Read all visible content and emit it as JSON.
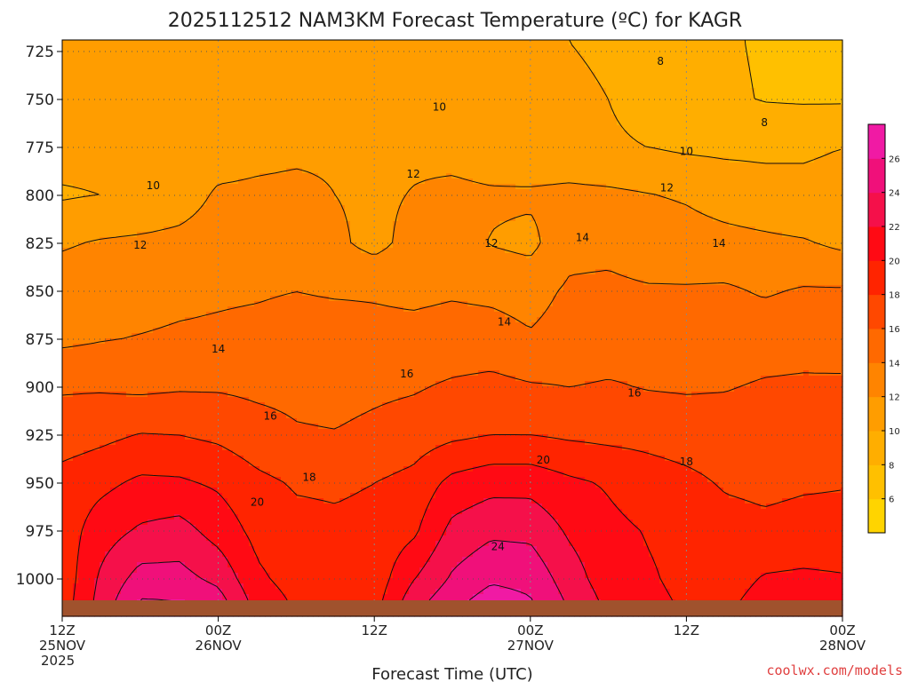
{
  "chart_data": {
    "type": "heatmap",
    "title": "2025112512 NAM3KM Forecast Temperature (ºC) for KAGR",
    "xlabel": "Forecast Time (UTC)",
    "ylabel": "",
    "y_axis": "pressure (hPa), inverted",
    "ylim": [
      1015,
      718
    ],
    "yticks": [
      "725",
      "750",
      "775",
      "800",
      "825",
      "850",
      "875",
      "900",
      "925",
      "950",
      "975",
      "1000"
    ],
    "xlim_hours": [
      0,
      60
    ],
    "xticks": [
      {
        "hour": 0,
        "lines": [
          "12Z",
          "25NOV",
          "2025"
        ]
      },
      {
        "hour": 12,
        "lines": [
          "00Z",
          "26NOV"
        ]
      },
      {
        "hour": 24,
        "lines": [
          "12Z",
          ""
        ]
      },
      {
        "hour": 36,
        "lines": [
          "00Z",
          "27NOV"
        ]
      },
      {
        "hour": 48,
        "lines": [
          "12Z",
          ""
        ]
      },
      {
        "hour": 60,
        "lines": [
          "00Z",
          "28NOV"
        ]
      }
    ],
    "grid": true,
    "colorbar": {
      "levels": [
        4,
        6,
        8,
        10,
        12,
        14,
        16,
        18,
        20,
        22,
        24,
        26,
        28
      ],
      "tick_labels": [
        "6",
        "8",
        "10",
        "12",
        "14",
        "16",
        "18",
        "20",
        "22",
        "24",
        "26"
      ],
      "colors": [
        "#ffd400",
        "#ffc000",
        "#ffae00",
        "#ff9d00",
        "#ff8400",
        "#ff6900",
        "#ff4800",
        "#ff2400",
        "#ff0a14",
        "#f5104a",
        "#f0107a",
        "#f01aa4"
      ]
    },
    "hours": [
      0,
      3,
      6,
      9,
      12,
      15,
      18,
      21,
      24,
      27,
      30,
      33,
      36,
      39,
      42,
      45,
      48,
      51,
      54,
      57,
      60
    ],
    "pressures": [
      720,
      750,
      775,
      800,
      825,
      850,
      875,
      900,
      925,
      950,
      975,
      1000,
      1012
    ],
    "temperatures": [
      [
        10.6,
        10.6,
        10.5,
        10.4,
        10.7,
        11.0,
        11.2,
        11.3,
        11.0,
        10.9,
        10.8,
        10.6,
        10.4,
        10.0,
        9.6,
        9.0,
        8.6,
        8.2,
        7.8,
        7.4,
        7.4
      ],
      [
        10.8,
        10.6,
        10.5,
        10.5,
        10.8,
        11.0,
        11.1,
        11.3,
        11.2,
        10.9,
        10.2,
        10.0,
        10.2,
        10.5,
        10.0,
        9.5,
        9.0,
        8.3,
        7.9,
        7.8,
        7.8
      ],
      [
        10.7,
        10.6,
        10.4,
        10.6,
        11.0,
        11.4,
        11.6,
        11.7,
        11.7,
        11.6,
        11.3,
        10.8,
        10.6,
        10.6,
        10.2,
        10.0,
        9.7,
        9.6,
        9.6,
        9.8,
        10.0
      ],
      [
        9.8,
        10.0,
        10.3,
        11.0,
        12.3,
        12.4,
        12.5,
        12.0,
        11.6,
        12.1,
        12.5,
        12.3,
        12.3,
        12.5,
        12.4,
        12.1,
        11.8,
        11.2,
        10.8,
        10.4,
        10.5
      ],
      [
        11.8,
        12.2,
        12.4,
        12.6,
        13.0,
        12.8,
        12.6,
        12.4,
        11.4,
        12.7,
        12.8,
        11.9,
        11.5,
        13.4,
        13.5,
        13.0,
        12.8,
        12.6,
        12.4,
        12.2,
        11.6
      ],
      [
        13.0,
        13.1,
        13.2,
        13.5,
        13.7,
        13.8,
        14.0,
        13.8,
        13.8,
        13.6,
        13.8,
        13.6,
        13.3,
        14.3,
        14.4,
        14.2,
        14.2,
        14.3,
        13.8,
        14.2,
        14.2
      ],
      [
        13.6,
        13.9,
        14.1,
        14.3,
        14.4,
        14.6,
        14.9,
        15.0,
        14.6,
        14.6,
        14.8,
        14.8,
        14.2,
        14.8,
        15.0,
        15.2,
        15.4,
        15.0,
        15.2,
        15.3,
        15.0
      ],
      [
        15.8,
        15.8,
        15.6,
        15.8,
        15.8,
        15.6,
        15.5,
        15.3,
        15.6,
        15.8,
        16.3,
        16.6,
        16.2,
        16.0,
        16.2,
        15.9,
        15.8,
        15.9,
        16.2,
        16.3,
        16.4
      ],
      [
        17.0,
        17.5,
        18.1,
        18.0,
        17.6,
        16.8,
        16.2,
        16.1,
        16.5,
        17.0,
        17.6,
        18.0,
        18.0,
        17.7,
        17.5,
        17.4,
        17.1,
        16.9,
        17.0,
        17.2,
        17.4
      ],
      [
        18.8,
        19.5,
        20.4,
        20.3,
        19.7,
        18.5,
        17.8,
        17.7,
        18.0,
        18.6,
        20.6,
        21.3,
        21.3,
        20.4,
        19.8,
        19.0,
        18.5,
        17.8,
        17.6,
        17.8,
        17.9
      ],
      [
        18.9,
        21.1,
        22.3,
        22.8,
        21.2,
        19.4,
        18.6,
        18.4,
        18.6,
        19.6,
        22.6,
        23.6,
        23.5,
        21.7,
        20.5,
        19.9,
        19.5,
        18.7,
        18.4,
        18.6,
        18.6
      ],
      [
        18.7,
        22.4,
        24.8,
        24.7,
        23.5,
        20.4,
        19.2,
        18.7,
        18.8,
        21.9,
        24.3,
        25.7,
        25.4,
        23.0,
        20.9,
        20.2,
        19.6,
        19.0,
        20.2,
        20.4,
        20.2
      ],
      [
        18.9,
        22.8,
        26.2,
        26.1,
        24.9,
        21.2,
        19.7,
        19.0,
        19.2,
        23.2,
        25.4,
        27.0,
        26.2,
        23.7,
        21.5,
        20.4,
        19.8,
        19.5,
        20.9,
        21.0,
        20.7
      ]
    ],
    "contour_labels": [
      {
        "text": "8",
        "hour": 46.0,
        "p": 730
      },
      {
        "text": "8",
        "hour": 54.0,
        "p": 762
      },
      {
        "text": "10",
        "hour": 29.0,
        "p": 754
      },
      {
        "text": "10",
        "hour": 7.0,
        "p": 795
      },
      {
        "text": "10",
        "hour": 48.0,
        "p": 777
      },
      {
        "text": "12",
        "hour": 27.0,
        "p": 789
      },
      {
        "text": "12",
        "hour": 6.0,
        "p": 826
      },
      {
        "text": "12",
        "hour": 33.0,
        "p": 825
      },
      {
        "text": "12",
        "hour": 46.5,
        "p": 796
      },
      {
        "text": "14",
        "hour": 12.0,
        "p": 880
      },
      {
        "text": "14",
        "hour": 40.0,
        "p": 822
      },
      {
        "text": "14",
        "hour": 34.0,
        "p": 866
      },
      {
        "text": "14",
        "hour": 50.5,
        "p": 825
      },
      {
        "text": "16",
        "hour": 26.5,
        "p": 893
      },
      {
        "text": "16",
        "hour": 16.0,
        "p": 915
      },
      {
        "text": "16",
        "hour": 44.0,
        "p": 903
      },
      {
        "text": "18",
        "hour": 19.0,
        "p": 947
      },
      {
        "text": "18",
        "hour": 48.0,
        "p": 939
      },
      {
        "text": "20",
        "hour": 15.0,
        "p": 960
      },
      {
        "text": "20",
        "hour": 37.0,
        "p": 938
      },
      {
        "text": "24",
        "hour": 33.5,
        "p": 983
      }
    ],
    "ground_color": "#a0522d",
    "watermark": "coolwx.com/models"
  }
}
